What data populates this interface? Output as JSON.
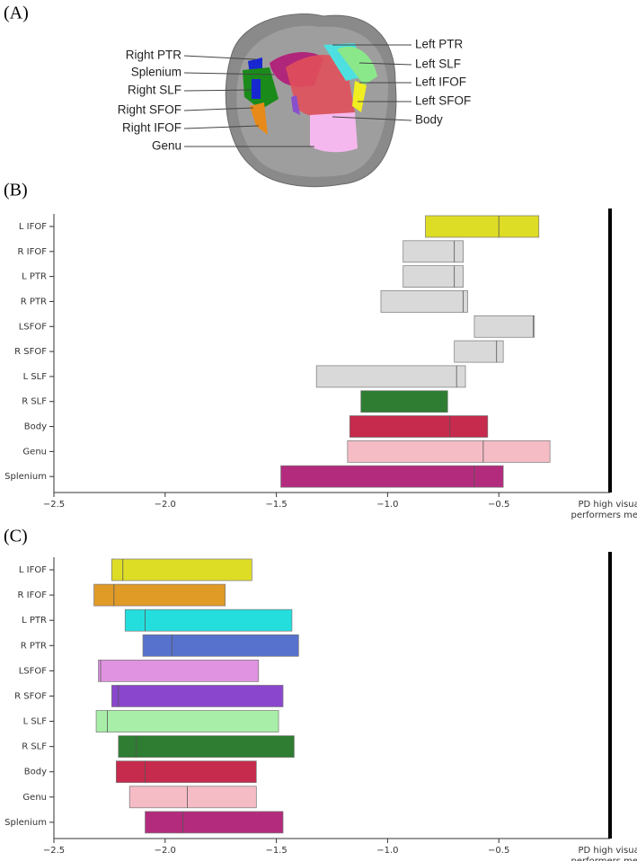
{
  "panel_a": {
    "label": "(A)",
    "left_labels": [
      "Right PTR",
      "Splenium",
      "Right SLF",
      "Right SFOF",
      "Right IFOF",
      "Genu"
    ],
    "right_labels": [
      "Left PTR",
      "Left SLF",
      "Left IFOF",
      "Left SFOF",
      "Body"
    ]
  },
  "chart_data": [
    {
      "type": "floatbar",
      "panel_label": "(B)",
      "categories": [
        "L IFOF",
        "R IFOF",
        "L PTR",
        "R PTR",
        "LSFOF",
        "R SFOF",
        "L SLF",
        "R SLF",
        "Body",
        "Genu",
        "Splenium"
      ],
      "low": [
        -0.83,
        -0.93,
        -0.93,
        -1.03,
        -0.61,
        -0.7,
        -1.32,
        -1.12,
        -1.17,
        -1.18,
        -1.48
      ],
      "high": [
        -0.32,
        -0.66,
        -0.66,
        -0.64,
        -0.34,
        -0.48,
        -0.65,
        -0.73,
        -0.55,
        -0.27,
        -0.48
      ],
      "mid": [
        -0.5,
        -0.7,
        -0.7,
        -0.66,
        -0.345,
        -0.51,
        -0.69,
        null,
        -0.72,
        -0.57,
        -0.61
      ],
      "colors": [
        "#dedd26",
        "#d9d9d9",
        "#d9d9d9",
        "#d9d9d9",
        "#d9d9d9",
        "#d9d9d9",
        "#d9d9d9",
        "#2e7d32",
        "#c62a4c",
        "#f5bcc6",
        "#b32b7c"
      ],
      "xlim": [
        -2.5,
        0
      ],
      "xticks": [
        {
          "value": -2.5,
          "label": "−2.5"
        },
        {
          "value": -2.0,
          "label": "−2.0"
        },
        {
          "value": -1.5,
          "label": "−1.5"
        },
        {
          "value": -1.0,
          "label": "−1.0"
        },
        {
          "value": -0.5,
          "label": "−0.5"
        }
      ],
      "reference": 0,
      "reference_label": [
        "PD high visual",
        "performers mean"
      ]
    },
    {
      "type": "floatbar",
      "panel_label": "(C)",
      "categories": [
        "L IFOF",
        "R IFOF",
        "L PTR",
        "R PTR",
        "LSFOF",
        "R SFOF",
        "L SLF",
        "R SLF",
        "Body",
        "Genu",
        "Splenium"
      ],
      "low": [
        -2.24,
        -2.32,
        -2.18,
        -2.1,
        -2.3,
        -2.24,
        -2.31,
        -2.21,
        -2.22,
        -2.16,
        -2.09
      ],
      "high": [
        -1.61,
        -1.73,
        -1.43,
        -1.4,
        -1.58,
        -1.47,
        -1.49,
        -1.42,
        -1.59,
        -1.59,
        -1.47
      ],
      "mid": [
        -2.19,
        -2.23,
        -2.09,
        -1.97,
        -2.29,
        -2.21,
        -2.26,
        -2.13,
        -2.09,
        -1.9,
        -1.92
      ],
      "colors": [
        "#dedd26",
        "#e09a26",
        "#24dede",
        "#5672cc",
        "#e093e0",
        "#8a46cc",
        "#a8eea8",
        "#2e7d32",
        "#c62a4c",
        "#f5bcc6",
        "#b32b7c"
      ],
      "xlim": [
        -2.5,
        0
      ],
      "xticks": [
        {
          "value": -2.5,
          "label": "−2.5"
        },
        {
          "value": -2.0,
          "label": "−2.0"
        },
        {
          "value": -1.5,
          "label": "−1.5"
        },
        {
          "value": -1.0,
          "label": "−1.0"
        },
        {
          "value": -0.5,
          "label": "−0.5"
        }
      ],
      "reference": 0,
      "reference_label": [
        "PD high visual",
        "performers mean"
      ]
    }
  ]
}
